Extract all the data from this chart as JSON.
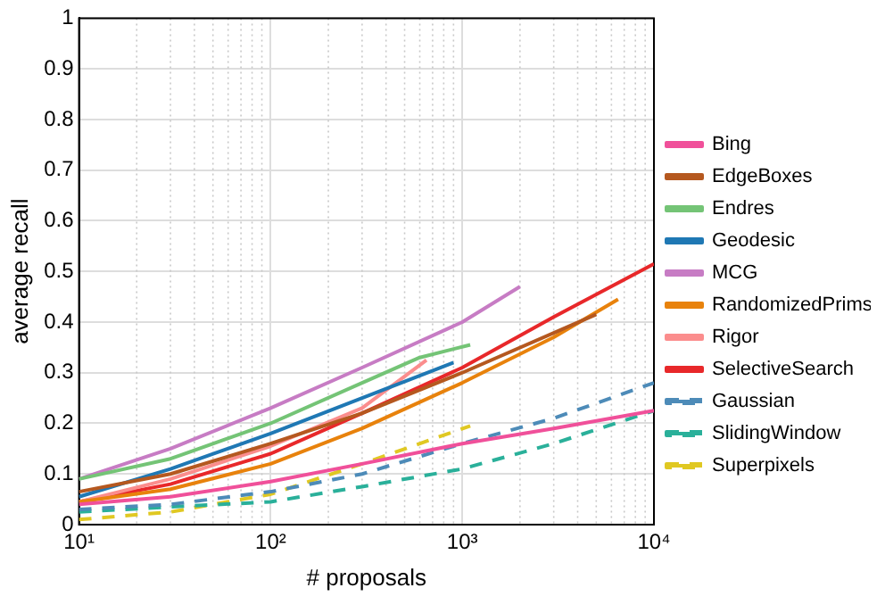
{
  "chart_data": {
    "type": "line",
    "xlabel": "# proposals",
    "ylabel": "average recall",
    "log": "x",
    "grid": true,
    "legend": "right",
    "line_style": "solid",
    "marker": "none",
    "xlim": [
      10,
      10000
    ],
    "xticks": [
      {
        "value": 10,
        "label": "10¹"
      },
      {
        "value": 100,
        "label": "10²"
      },
      {
        "value": 1000,
        "label": "10³"
      },
      {
        "value": 10000,
        "label": "10⁴"
      }
    ],
    "ylim": [
      0,
      1
    ],
    "yticks": [
      0,
      0.1,
      0.2,
      0.3,
      0.4,
      0.5,
      0.6,
      0.7,
      0.8,
      0.9,
      1
    ],
    "series": [
      {
        "name": "Bing",
        "color": "#f0509a",
        "x": [
          10,
          30,
          100,
          300,
          1000,
          3000,
          10000
        ],
        "values": [
          0.04,
          0.055,
          0.085,
          0.12,
          0.16,
          0.19,
          0.225
        ]
      },
      {
        "name": "EdgeBoxes",
        "color": "#b5581f",
        "x": [
          10,
          30,
          100,
          300,
          1000,
          5000
        ],
        "values": [
          0.065,
          0.1,
          0.16,
          0.22,
          0.3,
          0.415
        ]
      },
      {
        "name": "Endres",
        "color": "#74c476",
        "x": [
          10,
          30,
          100,
          300,
          600,
          1100
        ],
        "values": [
          0.09,
          0.13,
          0.2,
          0.28,
          0.33,
          0.355
        ]
      },
      {
        "name": "Geodesic",
        "color": "#1f78b4",
        "x": [
          10,
          30,
          100,
          300,
          900
        ],
        "values": [
          0.055,
          0.11,
          0.18,
          0.25,
          0.32
        ]
      },
      {
        "name": "MCG",
        "color": "#c77cc4",
        "x": [
          10,
          30,
          100,
          300,
          1000,
          2000
        ],
        "values": [
          0.09,
          0.15,
          0.23,
          0.31,
          0.4,
          0.47
        ]
      },
      {
        "name": "RandomizedPrims",
        "color": "#e8820c",
        "x": [
          10,
          30,
          100,
          300,
          1000,
          3000,
          6500
        ],
        "values": [
          0.045,
          0.07,
          0.12,
          0.19,
          0.28,
          0.37,
          0.445
        ]
      },
      {
        "name": "Rigor",
        "color": "#fb8d8d",
        "x": [
          10,
          30,
          100,
          300,
          650
        ],
        "values": [
          0.045,
          0.09,
          0.155,
          0.23,
          0.325
        ]
      },
      {
        "name": "SelectiveSearch",
        "color": "#e8282a",
        "x": [
          10,
          30,
          100,
          300,
          1000,
          3000,
          10000
        ],
        "values": [
          0.045,
          0.08,
          0.14,
          0.22,
          0.31,
          0.41,
          0.515
        ]
      },
      {
        "name": "Gaussian",
        "color": "#4d8bb8",
        "line_style": "dashed",
        "x": [
          10,
          30,
          100,
          300,
          1000,
          3000,
          10000
        ],
        "values": [
          0.03,
          0.04,
          0.065,
          0.1,
          0.16,
          0.21,
          0.28
        ]
      },
      {
        "name": "SlidingWindow",
        "color": "#2ab09a",
        "line_style": "dashed",
        "x": [
          10,
          30,
          100,
          300,
          1000,
          3000,
          10000
        ],
        "values": [
          0.025,
          0.035,
          0.045,
          0.075,
          0.11,
          0.16,
          0.225
        ]
      },
      {
        "name": "Superpixels",
        "color": "#e0c822",
        "line_style": "dashed",
        "x": [
          10,
          30,
          100,
          300,
          1100
        ],
        "values": [
          0.01,
          0.025,
          0.06,
          0.12,
          0.195
        ]
      }
    ]
  }
}
